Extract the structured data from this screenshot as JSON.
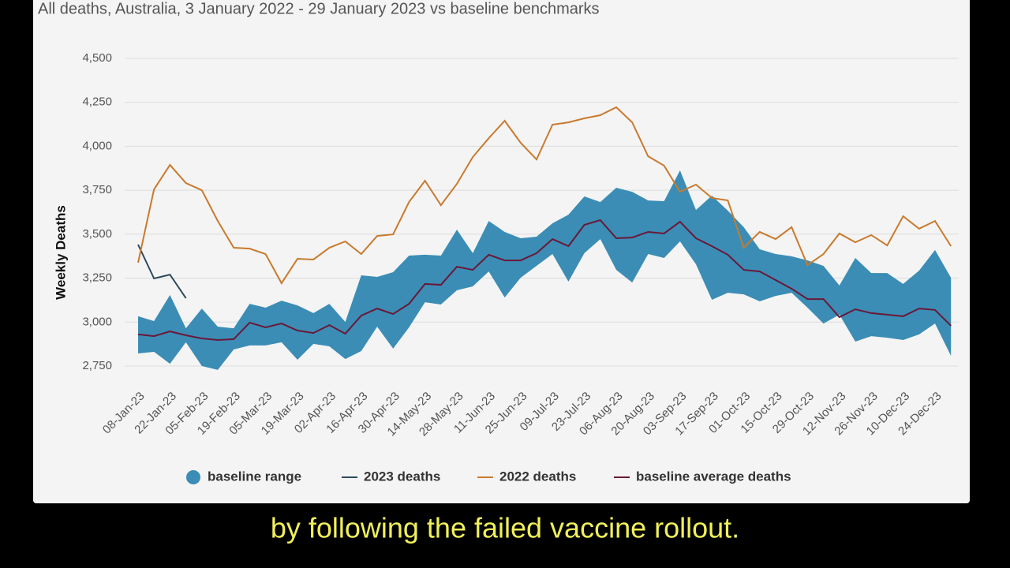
{
  "chart_data": {
    "type": "line",
    "title": "All deaths, Australia, 3 January 2022 - 29 January 2023 vs baseline benchmarks",
    "y_label": "Weekly Deaths",
    "categories": [
      "08-Jan-23",
      null,
      "22-Jan-23",
      null,
      "05-Feb-23",
      null,
      "19-Feb-23",
      null,
      "05-Mar-23",
      null,
      "19-Mar-23",
      null,
      "02-Apr-23",
      null,
      "16-Apr-23",
      null,
      "30-Apr-23",
      null,
      "14-May-23",
      null,
      "28-May-23",
      null,
      "11-Jun-23",
      null,
      "25-Jun-23",
      null,
      "09-Jul-23",
      null,
      "23-Jul-23",
      null,
      "06-Aug-23",
      null,
      "20-Aug-23",
      null,
      "03-Sep-23",
      null,
      "17-Sep-23",
      null,
      "01-Oct-23",
      null,
      "15-Oct-23",
      null,
      "29-Oct-23",
      null,
      "12-Nov-23",
      null,
      "26-Nov-23",
      null,
      "10-Dec-23",
      null,
      "24-Dec-23",
      null
    ],
    "ylim": [
      2750,
      4500
    ],
    "yticks": [
      {
        "value": 2750,
        "label": "2,750"
      },
      {
        "value": 3000,
        "label": "3,000"
      },
      {
        "value": 3250,
        "label": "3,250"
      },
      {
        "value": 3500,
        "label": "3,500"
      },
      {
        "value": 3750,
        "label": "3,750"
      },
      {
        "value": 4000,
        "label": "4,000"
      },
      {
        "value": 4250,
        "label": "4,250"
      },
      {
        "value": 4500,
        "label": "4,500"
      }
    ],
    "grid": true,
    "series": [
      {
        "name": "baseline range",
        "color": "#3b8db5",
        "kind": "band",
        "low": [
          2822,
          2831,
          2763,
          2885,
          2750,
          2728,
          2844,
          2867,
          2867,
          2885,
          2786,
          2876,
          2862,
          2790,
          2835,
          2974,
          2849,
          2970,
          3113,
          3100,
          3181,
          3203,
          3288,
          3140,
          3252,
          3320,
          3387,
          3230,
          3392,
          3472,
          3297,
          3225,
          3387,
          3365,
          3459,
          3329,
          3127,
          3167,
          3158,
          3118,
          3149,
          3167,
          3082,
          2992,
          3042,
          2889,
          2920,
          2911,
          2898,
          2930,
          2992,
          2808
        ],
        "high": [
          3033,
          3006,
          3154,
          2965,
          3077,
          2974,
          2965,
          3104,
          3082,
          3122,
          3095,
          3051,
          3104,
          3001,
          3266,
          3257,
          3284,
          3378,
          3383,
          3378,
          3526,
          3392,
          3575,
          3513,
          3477,
          3486,
          3562,
          3611,
          3715,
          3683,
          3764,
          3741,
          3692,
          3688,
          3863,
          3638,
          3719,
          3634,
          3540,
          3414,
          3387,
          3374,
          3351,
          3320,
          3208,
          3365,
          3279,
          3279,
          3217,
          3293,
          3410,
          3252
        ]
      },
      {
        "name": "2023 deaths",
        "color": "#2c4a5a",
        "values": [
          3441,
          3248,
          3270,
          3136,
          null,
          null,
          null,
          null,
          null,
          null,
          null,
          null,
          null,
          null,
          null,
          null,
          null,
          null,
          null,
          null,
          null,
          null,
          null,
          null,
          null,
          null,
          null,
          null,
          null,
          null,
          null,
          null,
          null,
          null,
          null,
          null,
          null,
          null,
          null,
          null,
          null,
          null,
          null,
          null,
          null,
          null,
          null,
          null,
          null,
          null,
          null,
          null
        ]
      },
      {
        "name": "2022 deaths",
        "color": "#c87a2e",
        "values": [
          3338,
          3755,
          3894,
          3791,
          3750,
          3575,
          3423,
          3418,
          3387,
          3221,
          3360,
          3356,
          3423,
          3459,
          3387,
          3490,
          3499,
          3683,
          3804,
          3665,
          3786,
          3939,
          4046,
          4145,
          4020,
          3925,
          4123,
          4136,
          4159,
          4177,
          4222,
          4136,
          3943,
          3890,
          3741,
          3782,
          3706,
          3692,
          3423,
          3513,
          3472,
          3540,
          3324,
          3387,
          3504,
          3454,
          3495,
          3436,
          3602,
          3531,
          3575,
          3432
        ]
      },
      {
        "name": "baseline average deaths",
        "color": "#6a1838",
        "values": [
          2930,
          2920,
          2947,
          2925,
          2907,
          2898,
          2903,
          2997,
          2970,
          2992,
          2952,
          2938,
          2983,
          2934,
          3037,
          3077,
          3046,
          3104,
          3217,
          3212,
          3315,
          3297,
          3383,
          3351,
          3351,
          3392,
          3472,
          3432,
          3553,
          3580,
          3477,
          3481,
          3513,
          3504,
          3571,
          3477,
          3432,
          3383,
          3297,
          3288,
          3239,
          3190,
          3131,
          3131,
          3028,
          3073,
          3051,
          3042,
          3033,
          3077,
          3069,
          2979
        ]
      }
    ]
  },
  "caption": "by following the failed vaccine rollout."
}
